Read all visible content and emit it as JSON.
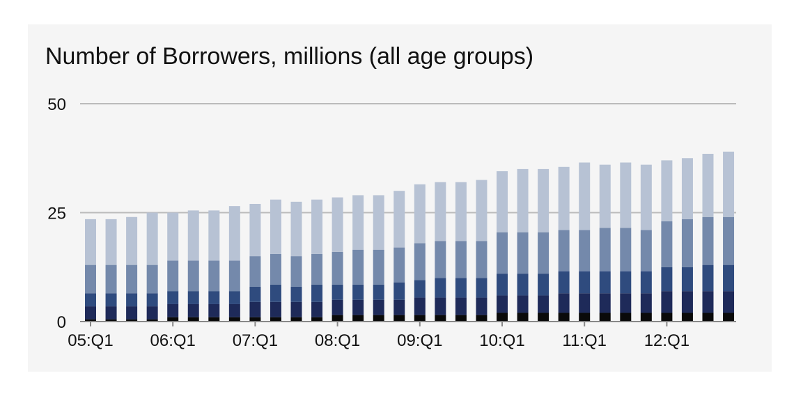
{
  "colors": {
    "background": "#ffffff",
    "panel": "#f5f5f5",
    "gridline": "#bbbbbb",
    "axis": "#888888",
    "segments": [
      "#0a0a0a",
      "#1e2a59",
      "#2f4b7e",
      "#7489ab",
      "#b7c2d4"
    ]
  },
  "chart_data": {
    "type": "bar",
    "stacked": true,
    "title": "Number of Borrowers, millions (all age groups)",
    "xlabel": "",
    "ylabel": "",
    "ylim": [
      0,
      50
    ],
    "yticks": [
      0,
      25,
      50
    ],
    "grid": true,
    "legend": "none",
    "x_tick_labels": [
      "05:Q1",
      "06:Q1",
      "07:Q1",
      "08:Q1",
      "09:Q1",
      "10:Q1",
      "11:Q1",
      "12:Q1"
    ],
    "categories": [
      "05:Q1",
      "05:Q2",
      "05:Q3",
      "05:Q4",
      "06:Q1",
      "06:Q2",
      "06:Q3",
      "06:Q4",
      "07:Q1",
      "07:Q2",
      "07:Q3",
      "07:Q4",
      "08:Q1",
      "08:Q2",
      "08:Q3",
      "08:Q4",
      "09:Q1",
      "09:Q2",
      "09:Q3",
      "09:Q4",
      "10:Q1",
      "10:Q2",
      "10:Q3",
      "10:Q4",
      "11:Q1",
      "11:Q2",
      "11:Q3",
      "11:Q4",
      "12:Q1",
      "12:Q2",
      "12:Q3",
      "12:Q4"
    ],
    "series": [
      {
        "values": [
          0.5,
          0.5,
          0.5,
          0.5,
          1.0,
          1.0,
          1.0,
          1.0,
          1.0,
          1.0,
          1.0,
          1.0,
          1.5,
          1.5,
          1.5,
          1.5,
          1.5,
          1.5,
          1.5,
          1.5,
          2.0,
          2.0,
          2.0,
          2.0,
          2.0,
          2.0,
          2.0,
          2.0,
          2.0,
          2.0,
          2.0,
          2.0
        ]
      },
      {
        "values": [
          3.0,
          3.0,
          3.0,
          3.0,
          3.0,
          3.0,
          3.0,
          3.0,
          3.5,
          3.5,
          3.5,
          3.5,
          3.5,
          3.5,
          3.5,
          3.5,
          4.0,
          4.0,
          4.0,
          4.0,
          4.0,
          4.0,
          4.0,
          4.5,
          4.5,
          4.5,
          4.5,
          4.5,
          5.0,
          5.0,
          5.0,
          5.0
        ]
      },
      {
        "values": [
          3.0,
          3.0,
          3.0,
          3.0,
          3.0,
          3.0,
          3.0,
          3.0,
          3.5,
          4.0,
          3.5,
          4.0,
          3.5,
          3.5,
          3.5,
          4.0,
          4.0,
          4.5,
          4.5,
          4.5,
          5.0,
          5.0,
          5.0,
          5.0,
          5.0,
          5.0,
          5.0,
          5.0,
          5.5,
          5.5,
          6.0,
          6.0
        ]
      },
      {
        "values": [
          6.5,
          6.5,
          6.5,
          6.5,
          7.0,
          7.0,
          7.0,
          7.0,
          7.0,
          7.0,
          7.0,
          7.0,
          7.5,
          8.0,
          8.0,
          8.0,
          8.5,
          8.5,
          8.5,
          8.5,
          9.5,
          9.5,
          9.5,
          9.5,
          9.5,
          10.0,
          10.0,
          9.5,
          10.5,
          11.0,
          11.0,
          11.0
        ]
      },
      {
        "values": [
          10.5,
          10.5,
          11.0,
          12.0,
          11.0,
          11.5,
          11.5,
          12.5,
          12.0,
          12.5,
          12.5,
          12.5,
          12.5,
          12.5,
          12.5,
          13.0,
          13.5,
          13.5,
          13.5,
          14.0,
          14.0,
          14.5,
          14.5,
          14.5,
          15.5,
          14.5,
          15.0,
          15.0,
          14.0,
          14.0,
          14.5,
          15.0
        ]
      }
    ]
  }
}
